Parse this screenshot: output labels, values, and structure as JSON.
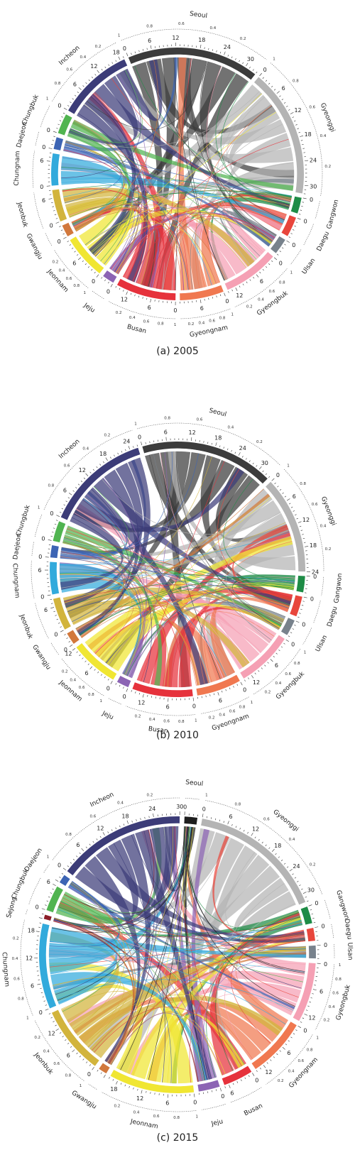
{
  "chart_data": [
    {
      "type": "chord",
      "caption": "(a)  2005",
      "regions": [
        {
          "name": "Seoul",
          "total": 33,
          "color": "#3c3c3c",
          "label": "Seoul"
        },
        {
          "name": "Gyeonggi",
          "total": 32,
          "color": "#b4b4b4",
          "label": "Gyeonggi"
        },
        {
          "name": "Gangwon",
          "total": 4,
          "color": "#1e8c46",
          "label": "Gangwon"
        },
        {
          "name": "Daegu",
          "total": 5,
          "color": "#e8463c",
          "label": "Daegu"
        },
        {
          "name": "Ulsan",
          "total": 4,
          "color": "#78828c",
          "label": "Ulsan"
        },
        {
          "name": "Gyeongbuk",
          "total": 14,
          "color": "#f5a0b4",
          "label": "Gyeongbuk"
        },
        {
          "name": "Gyeongnam",
          "total": 11,
          "color": "#f07850",
          "label": "Gyeongnam"
        },
        {
          "name": "Busan",
          "total": 15,
          "color": "#e6323c",
          "label": "Busan"
        },
        {
          "name": "Jeju",
          "total": 3,
          "color": "#8c64b4",
          "label": "Jeju"
        },
        {
          "name": "Jeonnam",
          "total": 11,
          "color": "#f0e632",
          "label": "Jeonnam"
        },
        {
          "name": "Gwangju",
          "total": 3,
          "color": "#d2783c",
          "label": "Gwangju"
        },
        {
          "name": "Jeonbuk",
          "total": 8,
          "color": "#d2b43c",
          "label": "Jeonbuk"
        },
        {
          "name": "Chungnam",
          "total": 8,
          "color": "#32aadc",
          "label": "Chungnam"
        },
        {
          "name": "Daejeon",
          "total": 3,
          "color": "#3c64b4",
          "label": "Daejeon"
        },
        {
          "name": "Chungbuk",
          "total": 5,
          "color": "#50b450",
          "label": "Chungbuk"
        },
        {
          "name": "Incheon",
          "total": 19,
          "color": "#3c3c78",
          "label": "Incheon"
        }
      ],
      "tick_labels": [
        "0",
        "6",
        "12",
        "18",
        "24",
        "30"
      ],
      "fraction_labels": [
        "0.2",
        "0.4",
        "0.6",
        "0.8",
        "1"
      ]
    },
    {
      "type": "chord",
      "caption": "(b)  2010",
      "regions": [
        {
          "name": "Seoul",
          "total": 33,
          "color": "#3c3c3c",
          "label": "Seoul"
        },
        {
          "name": "Gyeonggi",
          "total": 24,
          "color": "#b4b4b4",
          "label": "Gyeonggi"
        },
        {
          "name": "Gangwon",
          "total": 4,
          "color": "#1e8c46",
          "label": "Gangwon"
        },
        {
          "name": "Daegu",
          "total": 5,
          "color": "#e8463c",
          "label": "Daegu"
        },
        {
          "name": "Ulsan",
          "total": 4,
          "color": "#78828c",
          "label": "Ulsan"
        },
        {
          "name": "Gyeongbuk",
          "total": 14,
          "color": "#f5a0b4",
          "label": "Gyeongbuk"
        },
        {
          "name": "Gyeongnam",
          "total": 11,
          "color": "#f07850",
          "label": "Gyeongnam"
        },
        {
          "name": "Busan",
          "total": 15,
          "color": "#e6323c",
          "label": "Busan"
        },
        {
          "name": "Jeju",
          "total": 3,
          "color": "#8c64b4",
          "label": "Jeju"
        },
        {
          "name": "Jeonnam",
          "total": 12,
          "color": "#f0e632",
          "label": "Jeonnam"
        },
        {
          "name": "Gwangju",
          "total": 3,
          "color": "#d2783c",
          "label": "Gwangju"
        },
        {
          "name": "Jeonbuk",
          "total": 8,
          "color": "#d2b43c",
          "label": "Jeonbuk"
        },
        {
          "name": "Chungnam",
          "total": 8,
          "color": "#32aadc",
          "label": "Chungnam"
        },
        {
          "name": "Daejeon",
          "total": 3,
          "color": "#3c64b4",
          "label": "Daejeon"
        },
        {
          "name": "Chungbuk",
          "total": 5,
          "color": "#50b450",
          "label": "Chungbuk"
        },
        {
          "name": "Incheon",
          "total": 26,
          "color": "#3c3c78",
          "label": "Incheon"
        }
      ],
      "tick_labels": [
        "0",
        "6",
        "12",
        "18",
        "24",
        "30"
      ],
      "fraction_labels": [
        "0.2",
        "0.4",
        "0.6",
        "0.8",
        "1"
      ]
    },
    {
      "type": "chord",
      "caption": "(c)  2015",
      "regions": [
        {
          "name": "Seoul",
          "total": 3,
          "color": "#1e1e1e",
          "label": "Seoul"
        },
        {
          "name": "Gyeonggi",
          "total": 32,
          "color": "#b4b4b4",
          "label": "Gyeonggi"
        },
        {
          "name": "Gangwon",
          "total": 4,
          "color": "#1e8c46",
          "label": "Gangwon"
        },
        {
          "name": "Daegu",
          "total": 3,
          "color": "#e8463c",
          "label": "Daegu"
        },
        {
          "name": "Ulsan",
          "total": 3,
          "color": "#78828c",
          "label": "Ulsan"
        },
        {
          "name": "Gyeongbuk",
          "total": 14,
          "color": "#f5a0b4",
          "label": "Gyeongbuk"
        },
        {
          "name": "Gyeongnam",
          "total": 14,
          "color": "#f07850",
          "label": "Gyeongnam"
        },
        {
          "name": "Busan",
          "total": 7,
          "color": "#e6323c",
          "label": "Busan"
        },
        {
          "name": "Jeju",
          "total": 5,
          "color": "#8c64b4",
          "label": "Jeju"
        },
        {
          "name": "Jeonnam",
          "total": 20,
          "color": "#f0e632",
          "label": "Jeonnam"
        },
        {
          "name": "Gwangju",
          "total": 2,
          "color": "#d2783c",
          "label": "Gwangju"
        },
        {
          "name": "Jeonbuk",
          "total": 16,
          "color": "#d2b43c",
          "label": "Jeonbuk"
        },
        {
          "name": "Chungnam",
          "total": 20,
          "color": "#32aadc",
          "label": "Chungnam"
        },
        {
          "name": "Sejong",
          "total": 1,
          "color": "#8c1e28",
          "label": "Sejong"
        },
        {
          "name": "Chungbuk",
          "total": 6,
          "color": "#50b450",
          "label": "Chungbuk"
        },
        {
          "name": "Daejeon",
          "total": 2,
          "color": "#3c64b4",
          "label": "Daejeon"
        },
        {
          "name": "Incheon",
          "total": 30,
          "color": "#3c3c78",
          "label": "Incheon"
        }
      ],
      "tick_labels": [
        "0",
        "6",
        "12",
        "18",
        "24",
        "30"
      ],
      "fraction_labels": [
        "0.2",
        "0.4",
        "0.6",
        "0.8",
        "1"
      ]
    }
  ]
}
